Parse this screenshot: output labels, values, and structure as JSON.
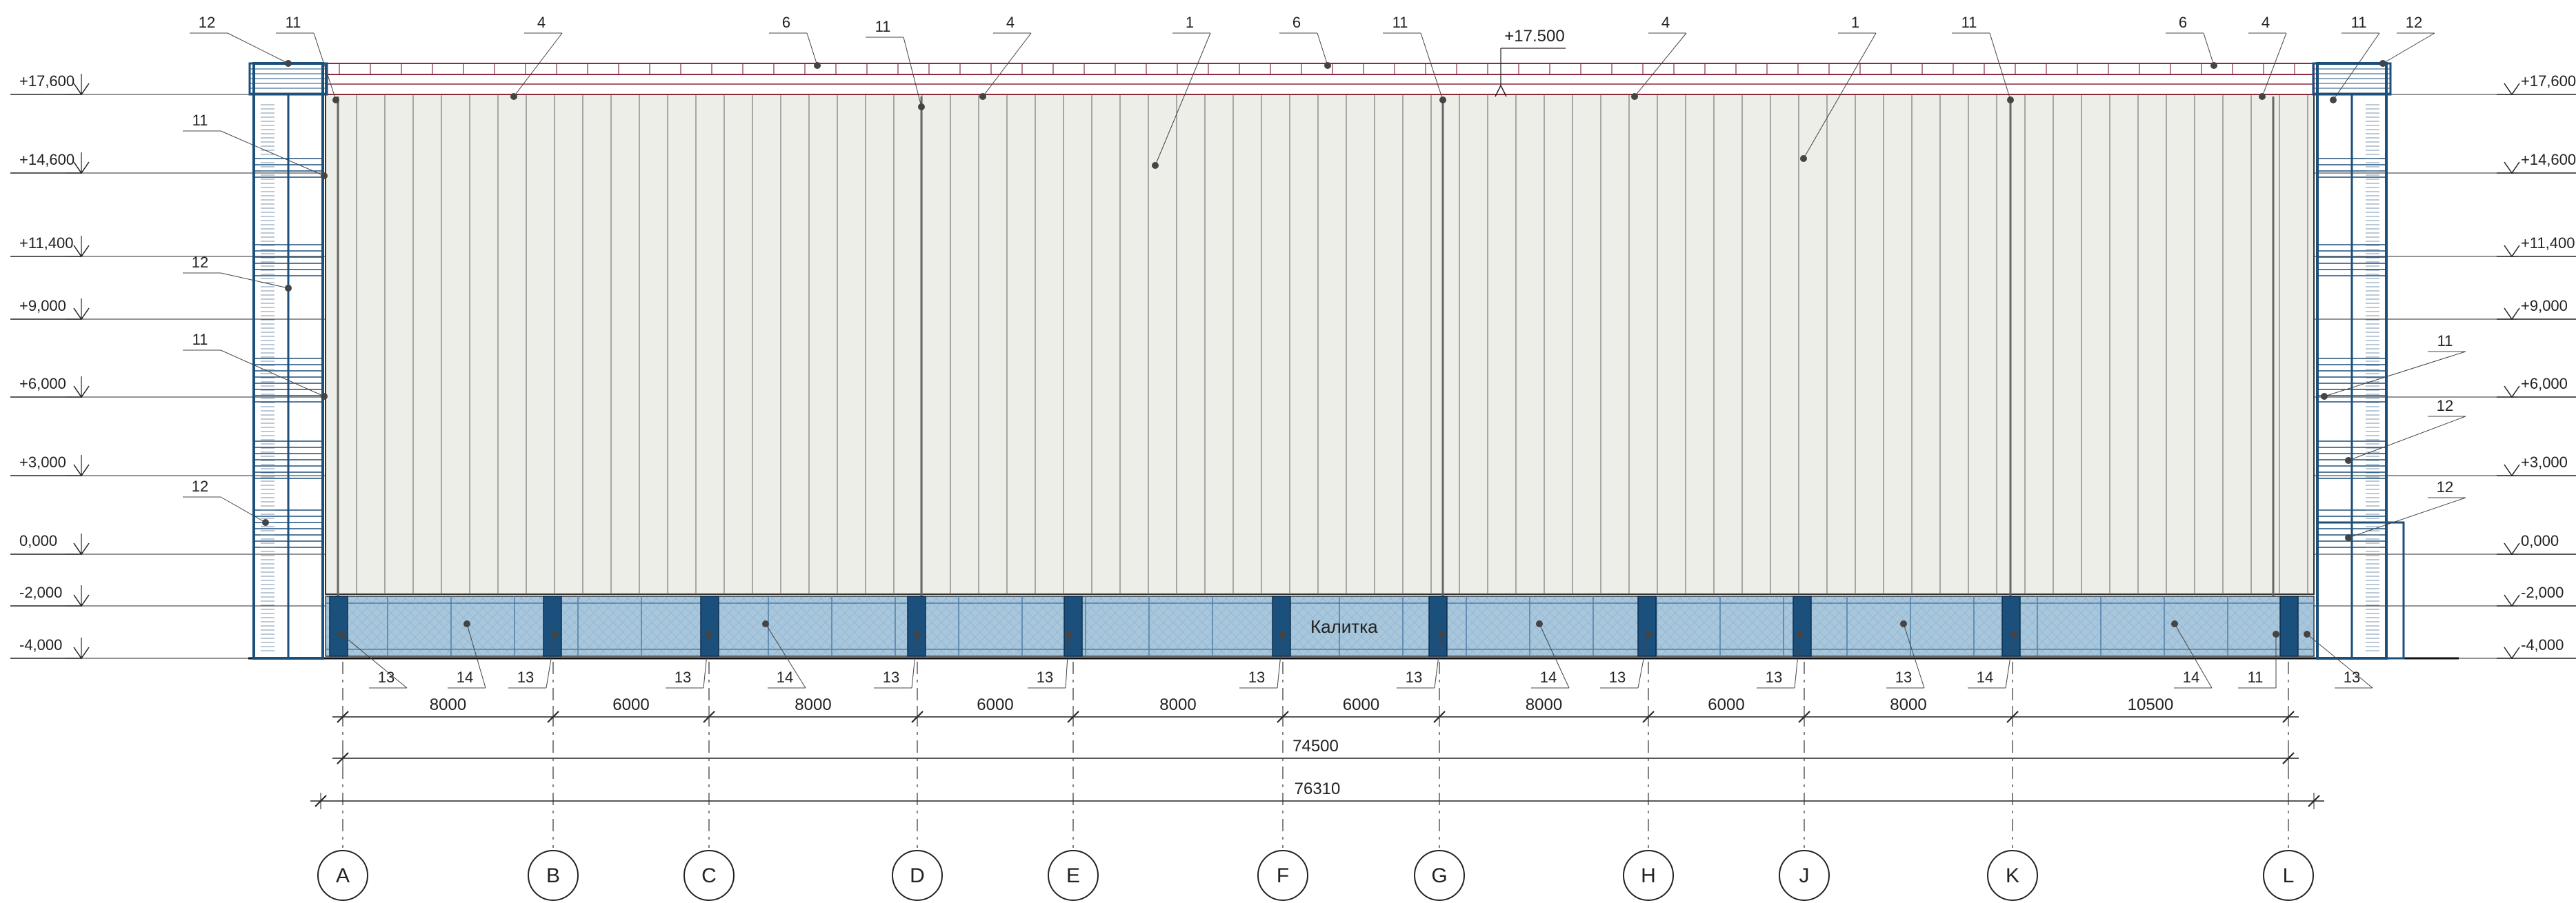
{
  "elevation_marks_left": [
    "+17,600",
    "+14,600",
    "+11,400",
    "+9,000",
    "+6,000",
    "+3,000",
    "0,000",
    "-2,000",
    "-4,000"
  ],
  "elevation_marks_right": [
    "+17,600",
    "+14,600",
    "+11,400",
    "+9,000",
    "+6,000",
    "+3,000",
    "0,000",
    "-2,000",
    "-4,000"
  ],
  "elevation_values": [
    17.6,
    14.6,
    11.4,
    9.0,
    6.0,
    3.0,
    0.0,
    -2.0,
    -4.0
  ],
  "ridge_mark": "+17.500",
  "axes": [
    "A",
    "B",
    "C",
    "D",
    "E",
    "F",
    "G",
    "H",
    "J",
    "K",
    "L"
  ],
  "bay_spans": [
    "8000",
    "6000",
    "8000",
    "6000",
    "8000",
    "6000",
    "8000",
    "6000",
    "8000",
    "10500"
  ],
  "bay_span_values": [
    8000,
    6000,
    8000,
    6000,
    8000,
    6000,
    8000,
    6000,
    8000,
    10500
  ],
  "overall_axes_dim": "74500",
  "overall_total_dim": "76310",
  "gate_label": "Калитка",
  "callouts": {
    "top": [
      "12",
      "11",
      "4",
      "6",
      "11",
      "4",
      "1",
      "6",
      "11",
      "4",
      "1",
      "11",
      "6",
      "4",
      "11",
      "12"
    ],
    "left": [
      "11",
      "12",
      "11",
      "12"
    ],
    "right": [
      "11",
      "12",
      "12"
    ],
    "bottom": [
      "13",
      "14",
      "13",
      "13",
      "14",
      "13",
      "13",
      "13",
      "13",
      "14",
      "13",
      "13",
      "14",
      "13",
      "14",
      "11",
      "13"
    ]
  },
  "colors": {
    "roof_band": "#8b2a3a",
    "wall_panel": "#eeeee8",
    "fence_mesh": "#a9c7dc",
    "fence_post": "#1b4f7c",
    "stair_frame": "#1b4f7c",
    "line": "#333333"
  }
}
